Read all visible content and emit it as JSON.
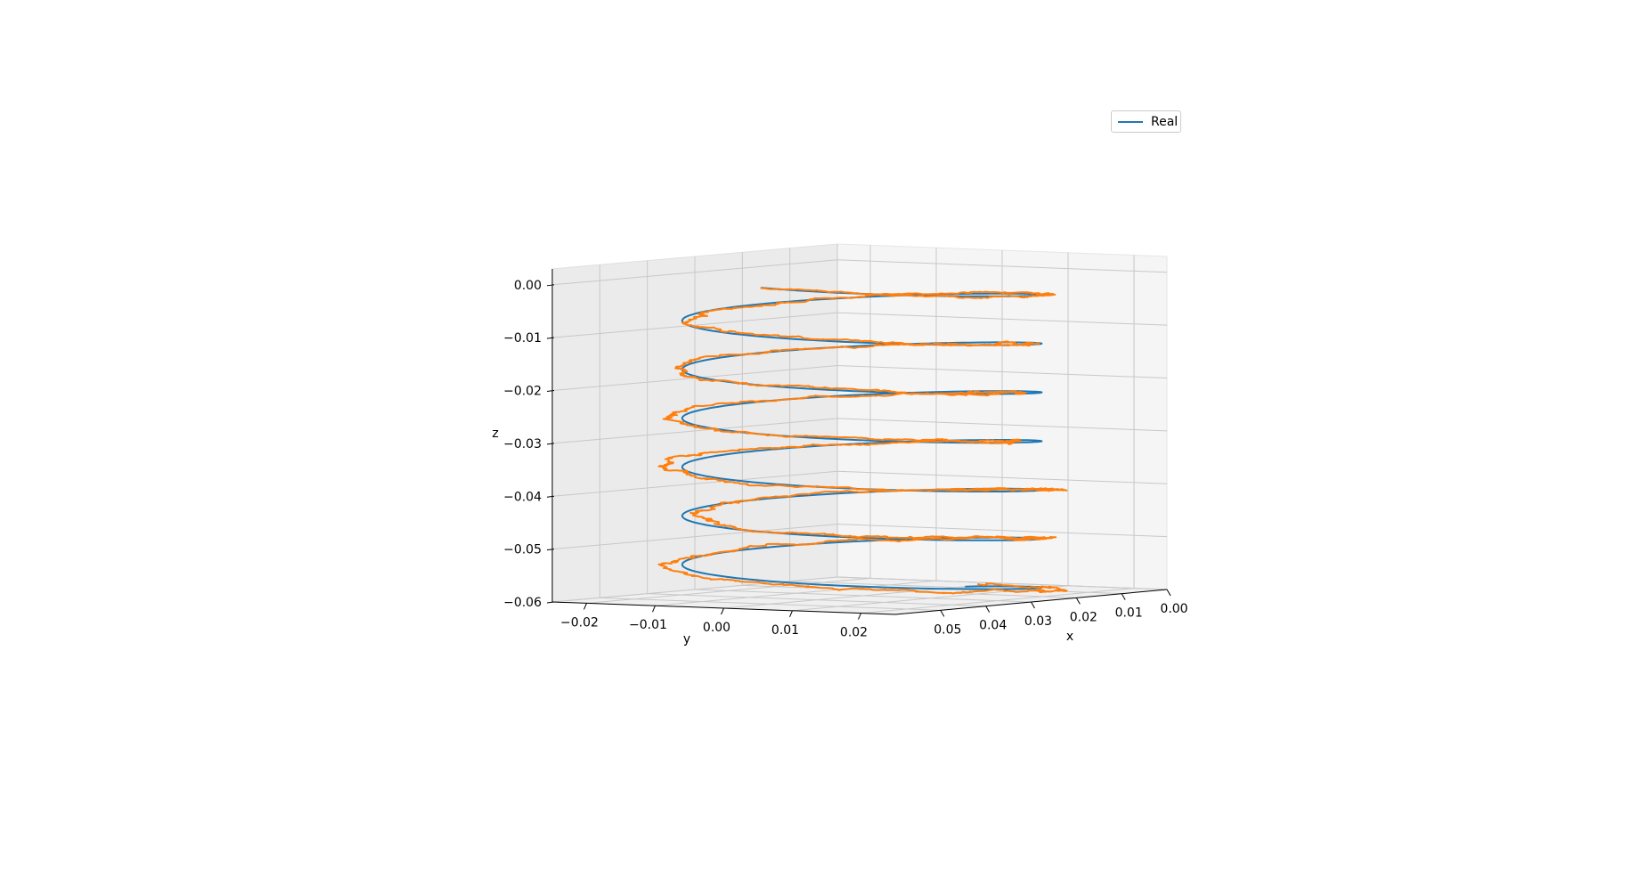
{
  "chart_data": {
    "type": "line",
    "projection": "3d",
    "title": "",
    "xlabel": "x",
    "ylabel": "y",
    "zlabel": "z",
    "x_ticks": [
      "0.00",
      "0.01",
      "0.02",
      "0.03",
      "0.04",
      "0.05"
    ],
    "y_ticks": [
      "−0.02",
      "−0.01",
      "0.00",
      "0.01",
      "0.02"
    ],
    "z_ticks": [
      "0.00",
      "−0.01",
      "−0.02",
      "−0.03",
      "−0.04",
      "−0.05",
      "−0.06"
    ],
    "xlim": [
      0.0,
      0.06
    ],
    "ylim": [
      -0.025,
      0.025
    ],
    "zlim": [
      -0.06,
      0.003
    ],
    "grid": true,
    "legend_position": "upper-right",
    "series": [
      {
        "name": "Real",
        "color": "#1f77b4",
        "shape": "helix",
        "center": [
          0.03,
          0.0
        ],
        "radius": 0.022,
        "z_range": [
          -0.06,
          0.0
        ],
        "turns": 6.5
      },
      {
        "color": "#ff7f0e",
        "shape": "noisy helix",
        "center": [
          0.03,
          0.0
        ],
        "radius": 0.022,
        "z_range": [
          -0.06,
          0.0
        ],
        "turns": 6.5
      }
    ]
  },
  "legend": {
    "entries": [
      {
        "label": "Real",
        "color": "#1f77b4"
      }
    ]
  }
}
